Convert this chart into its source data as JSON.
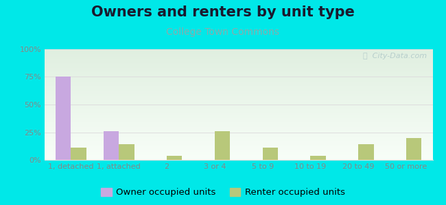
{
  "title": "Owners and renters by unit type",
  "subtitle": "College Town Commons",
  "categories": [
    "1, detached",
    "1, attached",
    "2",
    "3 or 4",
    "5 to 9",
    "10 to 19",
    "20 to 49",
    "50 or more"
  ],
  "owner_values": [
    75,
    26,
    0,
    0,
    0,
    0,
    0,
    0
  ],
  "renter_values": [
    11,
    14,
    4,
    26,
    11,
    4,
    14,
    20
  ],
  "owner_color": "#c8a8e0",
  "renter_color": "#b8c87a",
  "ylim": [
    0,
    100
  ],
  "yticks": [
    0,
    25,
    50,
    75,
    100
  ],
  "ytick_labels": [
    "0%",
    "25%",
    "50%",
    "75%",
    "100%"
  ],
  "bg_color": "#00e8e8",
  "plot_bg_top": "#e0efe0",
  "plot_bg_bottom": "#f8fef8",
  "title_fontsize": 15,
  "subtitle_fontsize": 10,
  "tick_fontsize": 8,
  "legend_fontsize": 9.5,
  "bar_width": 0.32,
  "title_color": "#1a1a2e",
  "subtitle_color": "#8aacac",
  "tick_color": "#888888",
  "grid_color": "#dddddd",
  "watermark_color": "#b0c8c8"
}
